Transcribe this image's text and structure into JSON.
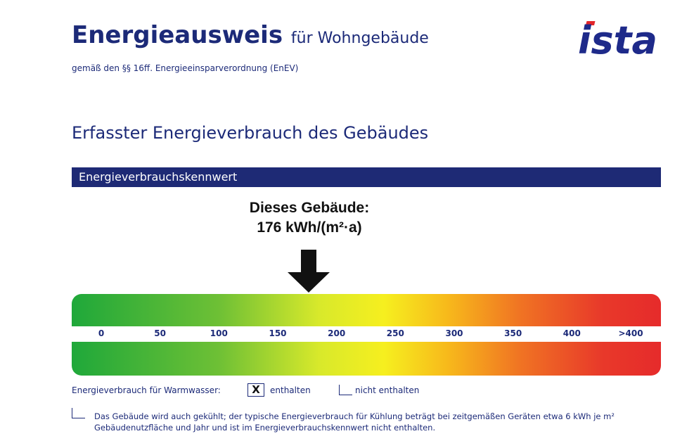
{
  "header": {
    "title": "Energieausweis",
    "title_suffix": "für Wohngebäude",
    "subtitle": "gemäß den §§ 16ff. Energieeinsparverordnung (EnEV)",
    "logo_text": "ista",
    "logo_color": "#1e2a8a",
    "logo_accent": "#e3262b"
  },
  "section": {
    "heading": "Erfasster Energieverbrauch des Gebäudes",
    "bar_label": "Energieverbrauchskennwert",
    "bar_color": "#1e2a75"
  },
  "indicator": {
    "label_line1": "Dieses Gebäude:",
    "label_line2": "176 kWh/(m²·a)",
    "value": 176
  },
  "scale": {
    "min": 0,
    "max": 450,
    "ticks": [
      {
        "value": 0,
        "label": "0"
      },
      {
        "value": 50,
        "label": "50"
      },
      {
        "value": 100,
        "label": "100"
      },
      {
        "value": 150,
        "label": "150"
      },
      {
        "value": 200,
        "label": "200"
      },
      {
        "value": 250,
        "label": "250"
      },
      {
        "value": 300,
        "label": "300"
      },
      {
        "value": 350,
        "label": "350"
      },
      {
        "value": 400,
        "label": "400"
      },
      {
        "value": 450,
        "label": ">400"
      }
    ]
  },
  "warmwater": {
    "label": "Energieverbrauch für Warmwasser:",
    "included_label": "enthalten",
    "included_checked": true,
    "included_mark": "X",
    "not_included_label": "nicht enthalten",
    "not_included_checked": false
  },
  "cooling": {
    "checked": false,
    "text": "Das Gebäude wird auch gekühlt; der typische Energieverbrauch für Kühlung beträgt bei zeitgemäßen Geräten etwa 6 kWh je m² Gebäudenutzfläche und Jahr und ist im Energieverbrauchskennwert nicht enthalten."
  }
}
